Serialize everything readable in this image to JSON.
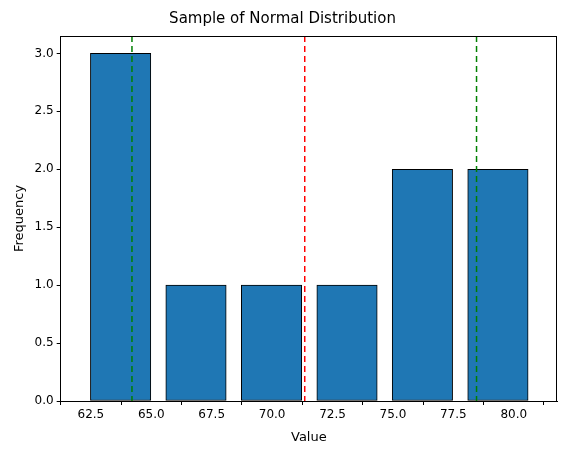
{
  "chart_data": {
    "type": "histogram",
    "title": "Sample of Normal Distribution",
    "x_label": "Value",
    "y_label": "Frequency",
    "bins": [
      62.17,
      65.29,
      68.41,
      71.54,
      74.66,
      77.78,
      80.91
    ],
    "counts": [
      3,
      1,
      1,
      1,
      2,
      2
    ],
    "color": "#1f77b4",
    "xlim": [
      61.25,
      81.79
    ],
    "ylim": [
      0,
      3.15
    ],
    "xticks": [
      62.5,
      {
        "value": 65,
        "label": "65.0"
      },
      67.5,
      {
        "value": 70,
        "label": "70.0"
      },
      72.5,
      {
        "value": 75,
        "label": "75.0"
      },
      77.5,
      {
        "value": 80,
        "label": "80.0"
      }
    ],
    "yticks": [
      {
        "value": 0,
        "label": "0.0"
      },
      0.5,
      {
        "value": 1,
        "label": "1.0"
      },
      1.5,
      {
        "value": 2,
        "label": "2.0"
      },
      2.5,
      {
        "value": 3,
        "label": "3.0"
      }
    ],
    "grid": false,
    "vlines": [
      {
        "value": 64.2,
        "color": "#008000",
        "line_style": "dashed"
      },
      {
        "value": 71.35,
        "color": "#ff0000",
        "line_style": "dashed"
      },
      {
        "value": 78.46,
        "color": "#008000",
        "line_style": "dashed"
      }
    ]
  }
}
